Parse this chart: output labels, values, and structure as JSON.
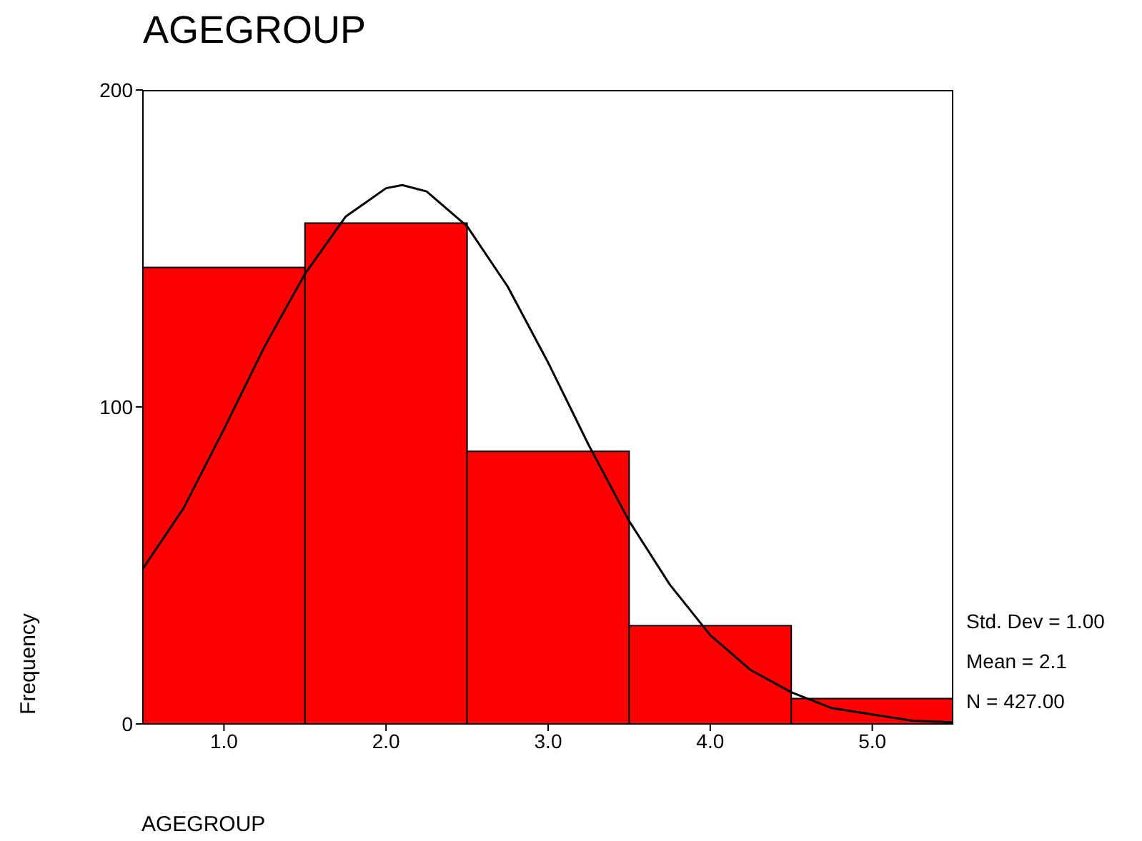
{
  "chart_data": {
    "type": "histogram",
    "title": "AGEGROUP",
    "xlabel": "AGEGROUP",
    "ylabel": "Frequency",
    "xlim": [
      0.5,
      5.5
    ],
    "xticks": [
      {
        "value": 1,
        "label": "1.0"
      },
      {
        "value": 2,
        "label": "2.0"
      },
      {
        "value": 3,
        "label": "3.0"
      },
      {
        "value": 4,
        "label": "4.0"
      },
      {
        "value": 5,
        "label": "5.0"
      }
    ],
    "ylim": [
      0,
      200
    ],
    "yticks": [
      0,
      100,
      200
    ],
    "series": [
      {
        "type": "histogram",
        "color": "#ff0000",
        "bins": [
          0.5,
          1.5,
          2.5,
          3.5,
          4.5,
          5.5
        ],
        "values": [
          144,
          158,
          86,
          31,
          8
        ]
      },
      {
        "type": "line",
        "color": "#000000",
        "x": [
          0.5,
          0.75,
          1,
          1.25,
          1.5,
          1.75,
          2,
          2.1,
          2.25,
          2.5,
          2.75,
          3,
          3.25,
          3.5,
          3.75,
          4,
          4.25,
          4.5,
          4.75,
          5,
          5.25,
          5.5
        ],
        "values": [
          49,
          68,
          93,
          119,
          142,
          160,
          169,
          170,
          168,
          157,
          138,
          114,
          88,
          64,
          44,
          28,
          17,
          10,
          5,
          3,
          1,
          0.5
        ]
      }
    ],
    "annotations": [
      "Std. Dev = 1.00",
      "Mean = 2.1",
      "N = 427.00"
    ],
    "grid": false,
    "legend": false
  }
}
